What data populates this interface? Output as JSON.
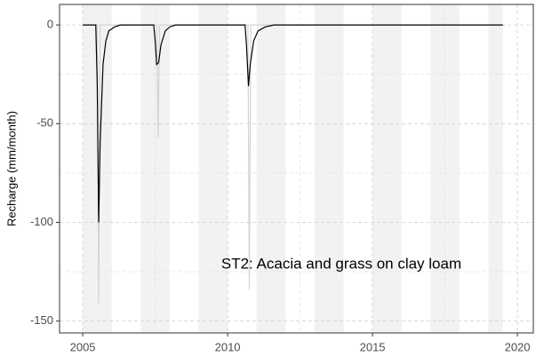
{
  "chart_data": {
    "type": "line",
    "y_label": "Recharge (mm/month)",
    "annotation": "ST2: Acacia and grass on clay loam",
    "xlim": [
      2004.2,
      2020.55
    ],
    "ylim": [
      -156,
      10.4
    ],
    "xticks": [
      2005,
      2010,
      2015,
      2020
    ],
    "yticks": [
      -150,
      -100,
      -50,
      0
    ],
    "minor_xticks": [
      2007.5,
      2012.5,
      2017.5
    ],
    "minor_yticks": [
      -125,
      -75,
      -25
    ],
    "grid": true,
    "shaded_periods": [
      [
        2005,
        2006
      ],
      [
        2007,
        2008
      ],
      [
        2009,
        2010
      ],
      [
        2011,
        2012
      ],
      [
        2013,
        2014
      ],
      [
        2015,
        2016
      ],
      [
        2017,
        2018
      ],
      [
        2019,
        2019.5
      ]
    ],
    "shade_color": "#f2f2f2",
    "series": [
      {
        "color": "#d3d3d3",
        "x": [
          2005,
          2005.5,
          2005.55,
          2005.6,
          2007.55,
          2007.6,
          2007.65,
          2010.7,
          2010.75,
          2010.8,
          2019.5
        ],
        "values": [
          0,
          0,
          -141,
          0,
          0,
          -57,
          0,
          0,
          -134,
          0,
          0
        ]
      },
      {
        "color": "#000000",
        "x": [
          2005,
          2005.45,
          2005.5,
          2005.55,
          2005.6,
          2005.7,
          2005.8,
          2005.9,
          2006.1,
          2006.3,
          2007.45,
          2007.5,
          2007.55,
          2007.62,
          2007.7,
          2007.85,
          2008.0,
          2008.2,
          2010.6,
          2010.65,
          2010.72,
          2010.78,
          2010.9,
          2011.05,
          2011.3,
          2011.6,
          2019.5
        ],
        "values": [
          0,
          0,
          -30,
          -100,
          -60,
          -20,
          -8,
          -3,
          -1,
          0,
          0,
          -8,
          -20,
          -19,
          -10,
          -3,
          -1,
          0,
          0,
          -10,
          -31,
          -20,
          -8,
          -3,
          -1,
          0,
          0
        ]
      }
    ]
  }
}
